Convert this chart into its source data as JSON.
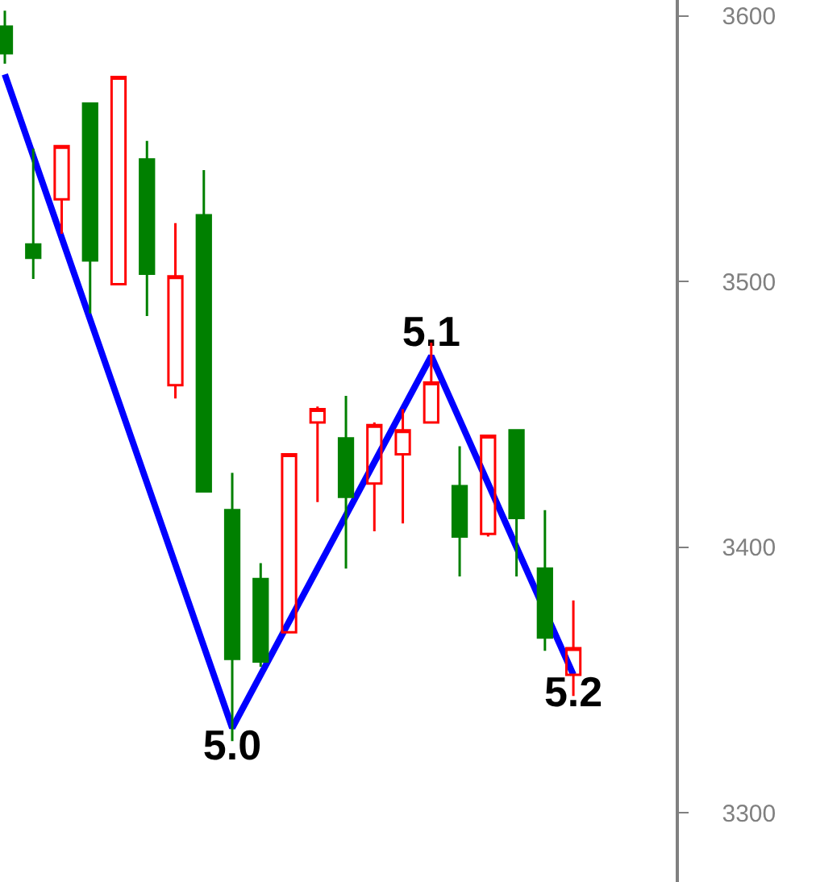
{
  "chart_data": {
    "type": "candlestick",
    "categories": [
      null,
      null,
      null,
      null,
      null,
      null,
      null,
      null,
      null,
      null,
      null,
      null,
      null,
      null,
      null,
      null,
      null,
      null,
      null,
      null,
      null
    ],
    "ohlc": [
      [
        3596,
        3602,
        3582,
        3586
      ],
      [
        3514,
        3550,
        3501,
        3509
      ],
      [
        3531,
        3551,
        3518,
        3551
      ],
      [
        3567,
        3567,
        3488,
        3508
      ],
      [
        3499,
        3577,
        3499,
        3577
      ],
      [
        3546,
        3553,
        3487,
        3503
      ],
      [
        3461,
        3522,
        3456,
        3502
      ],
      [
        3525,
        3542,
        3421,
        3421
      ],
      [
        3414,
        3428,
        3327,
        3358
      ],
      [
        3388,
        3394,
        3355,
        3357
      ],
      [
        3368,
        3435,
        3368,
        3435
      ],
      [
        3447,
        3453,
        3417,
        3452
      ],
      [
        3441,
        3457,
        3392,
        3419
      ],
      [
        3424,
        3447,
        3406,
        3446
      ],
      [
        3435,
        3452,
        3409,
        3444
      ],
      [
        3447,
        3477,
        3447,
        3462
      ],
      [
        3423,
        3438,
        3389,
        3404
      ],
      [
        3405,
        3442,
        3404,
        3442
      ],
      [
        3444,
        3444,
        3389,
        3411
      ],
      [
        3392,
        3414,
        3361,
        3366
      ],
      [
        3352,
        3380,
        3344,
        3362
      ]
    ],
    "series": [
      {
        "type": "line",
        "color": "#0000ff",
        "values": [
          3578,
          null,
          null,
          null,
          null,
          null,
          null,
          null,
          3332,
          null,
          null,
          null,
          null,
          null,
          null,
          3472,
          null,
          null,
          null,
          null,
          3352
        ]
      }
    ],
    "annotations": [
      "5.0",
      "5.1",
      "5.2"
    ],
    "ylim": [
      3274,
      3606
    ],
    "yticks": [
      3300,
      3400,
      3500,
      3600
    ]
  }
}
